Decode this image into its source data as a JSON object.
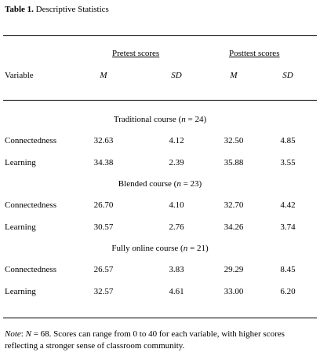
{
  "title": {
    "label": "Table 1.",
    "text": "Descriptive Statistics"
  },
  "header": {
    "pretest": "Pretest scores",
    "posttest": "Posttest scores",
    "variable": "Variable",
    "m": "M",
    "sd": "SD"
  },
  "groups": [
    {
      "label_pre": "Traditional course (",
      "n_var": "n",
      "label_post": " = 24)",
      "rows": [
        {
          "variable": "Connectedness",
          "pre_m": "32.63",
          "pre_sd": "4.12",
          "post_m": "32.50",
          "post_sd": "4.85"
        },
        {
          "variable": "Learning",
          "pre_m": "34.38",
          "pre_sd": "2.39",
          "post_m": "35.88",
          "post_sd": "3.55"
        }
      ]
    },
    {
      "label_pre": "Blended course (",
      "n_var": "n",
      "label_post": " = 23)",
      "rows": [
        {
          "variable": "Connectedness",
          "pre_m": "26.70",
          "pre_sd": "4.10",
          "post_m": "32.70",
          "post_sd": "4.42"
        },
        {
          "variable": "Learning",
          "pre_m": "30.57",
          "pre_sd": "2.76",
          "post_m": "34.26",
          "post_sd": "3.74"
        }
      ]
    },
    {
      "label_pre": "Fully online course (",
      "n_var": "n",
      "label_post": " = 21)",
      "rows": [
        {
          "variable": "Connectedness",
          "pre_m": "26.57",
          "pre_sd": "3.83",
          "post_m": "29.29",
          "post_sd": "8.45"
        },
        {
          "variable": "Learning",
          "pre_m": "32.57",
          "pre_sd": "4.61",
          "post_m": "33.00",
          "post_sd": "6.20"
        }
      ]
    }
  ],
  "note": {
    "label": "Note",
    "colon": ": ",
    "n_var": "N",
    "text": " = 68. Scores can range from 0 to 40 for each variable, with higher scores reflecting a stronger sense of classroom community."
  }
}
